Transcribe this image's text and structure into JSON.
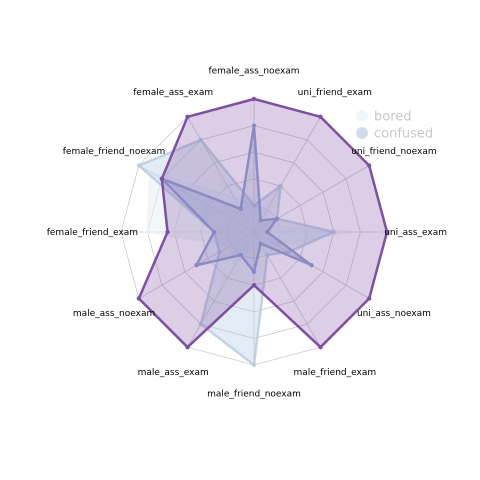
{
  "chart_data": {
    "type": "radar",
    "title": "",
    "axes": [
      "uni_ass_exam",
      "uni_friend_noexam",
      "uni_friend_exam",
      "female_ass_noexam",
      "female_ass_exam",
      "female_friend_noexam",
      "female_friend_exam",
      "male_ass_noexam",
      "male_ass_exam",
      "male_friend_noexam",
      "male_friend_exam",
      "uni_ass_noexam"
    ],
    "rmax": 1.0,
    "grid": true,
    "legend_position": "top-right",
    "series": [
      {
        "name": "bored",
        "color": "#e8f0f8",
        "fill_opacity": 0.55,
        "line_opacity": 0.5,
        "values": [
          0.7,
          0.1,
          0.2,
          0.2,
          0.3,
          0.9,
          0.8,
          0.2,
          0.3,
          0.1,
          0.2,
          0.2
        ]
      },
      {
        "name": "confused",
        "color": "#b0c8e0",
        "fill_opacity": 0.35,
        "line_opacity": 0.75,
        "values": [
          0.6,
          0.2,
          0.4,
          0.2,
          0.8,
          1.0,
          0.3,
          0.3,
          0.8,
          1.0,
          0.2,
          0.3
        ]
      },
      {
        "name": "",
        "color": "#8c9fd1",
        "fill_opacity": 0.25,
        "line_opacity": 0.95,
        "values": [
          0.1,
          0.2,
          0.1,
          0.8,
          0.2,
          0.8,
          0.3,
          0.5,
          0.2,
          0.3,
          0.1,
          0.5
        ]
      },
      {
        "name": "",
        "color": "#7e4fa2",
        "fill_opacity": 0.28,
        "line_opacity": 1.0,
        "values": [
          1.0,
          1.0,
          1.0,
          1.0,
          1.0,
          0.8,
          0.65,
          1.0,
          1.0,
          0.4,
          1.0,
          1.0
        ]
      }
    ]
  }
}
